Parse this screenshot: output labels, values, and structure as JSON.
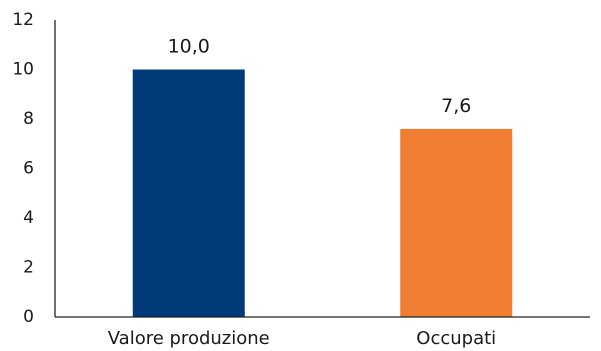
{
  "chart_data": {
    "type": "bar",
    "categories": [
      "Valore produzione",
      "Occupati"
    ],
    "values": [
      10.0,
      7.6
    ],
    "data_labels": [
      "10,0",
      "7,6"
    ],
    "bar_colors": [
      "#003a78",
      "#ef7d32"
    ],
    "ylim": [
      0,
      12
    ],
    "yticks": [
      0,
      2,
      4,
      6,
      8,
      10,
      12
    ],
    "grid": false,
    "legend": "none"
  }
}
